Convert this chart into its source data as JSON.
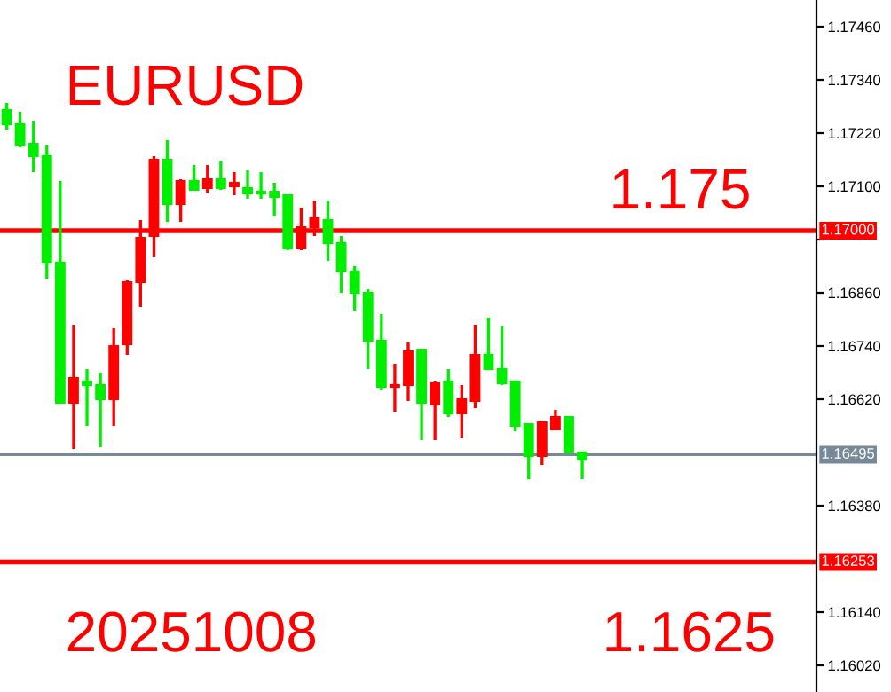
{
  "chart_data": {
    "type": "candlestick",
    "categories": [
      null,
      null,
      null,
      null,
      null,
      null,
      null,
      null,
      null,
      null,
      null,
      null,
      null,
      null,
      null,
      null,
      null,
      null,
      null,
      null,
      null,
      null,
      null,
      null,
      null,
      null,
      null,
      null,
      null,
      null,
      null,
      null,
      null,
      null,
      null,
      null,
      null,
      null,
      null,
      null,
      null,
      null,
      null,
      null,
      null,
      null,
      null,
      null,
      null,
      null,
      null,
      null,
      null,
      null,
      null,
      null,
      null,
      null,
      null,
      null,
      null
    ],
    "ohlc": [
      [
        1.17272,
        1.17288,
        1.17228,
        1.1724
      ],
      [
        1.1724,
        1.17268,
        1.17188,
        1.17192
      ],
      [
        1.17196,
        1.17248,
        1.17132,
        1.17168
      ],
      [
        1.17168,
        1.17192,
        1.16892,
        1.16928
      ],
      [
        1.16928,
        1.17112,
        1.16612,
        1.16612
      ],
      [
        1.16612,
        1.16788,
        1.16508,
        1.16668
      ],
      [
        1.1666,
        1.16688,
        1.1656,
        1.16652
      ],
      [
        1.16652,
        1.1668,
        1.16512,
        1.1662
      ],
      [
        1.1662,
        1.1678,
        1.1656,
        1.1674
      ],
      [
        1.16744,
        1.16888,
        1.1672,
        1.16884
      ],
      [
        1.16884,
        1.17024,
        1.16828,
        1.16984
      ],
      [
        1.16988,
        1.17168,
        1.1694,
        1.1716
      ],
      [
        1.1716,
        1.17204,
        1.1702,
        1.1706
      ],
      [
        1.1706,
        1.17116,
        1.1702,
        1.17112
      ],
      [
        1.17112,
        1.17148,
        1.17092,
        1.17092
      ],
      [
        1.17096,
        1.17148,
        1.17084,
        1.17116
      ],
      [
        1.17116,
        1.17156,
        1.17092,
        1.17096
      ],
      [
        1.171,
        1.17132,
        1.1708,
        1.17108
      ],
      [
        1.17096,
        1.17136,
        1.17072,
        1.17084
      ],
      [
        1.17088,
        1.17132,
        1.17072,
        1.17084
      ],
      [
        1.17088,
        1.17108,
        1.17032,
        1.17076
      ],
      [
        1.1708,
        1.1708,
        1.16956,
        1.1696
      ],
      [
        1.1696,
        1.17052,
        1.16956,
        1.17008
      ],
      [
        1.17008,
        1.17068,
        1.16988,
        1.17028
      ],
      [
        1.17024,
        1.17068,
        1.16932,
        1.16972
      ],
      [
        1.16972,
        1.16988,
        1.1686,
        1.16908
      ],
      [
        1.16908,
        1.1692,
        1.1682,
        1.1686
      ],
      [
        1.1686,
        1.16868,
        1.16688,
        1.16752
      ],
      [
        1.16752,
        1.16812,
        1.1664,
        1.16648
      ],
      [
        1.16648,
        1.167,
        1.16592,
        1.16652
      ],
      [
        1.16652,
        1.16748,
        1.16616,
        1.16728
      ],
      [
        1.16732,
        1.16732,
        1.16528,
        1.16612
      ],
      [
        1.16608,
        1.1666,
        1.16528,
        1.16656
      ],
      [
        1.1666,
        1.16688,
        1.1658,
        1.16588
      ],
      [
        1.16588,
        1.16652,
        1.16532,
        1.1662
      ],
      [
        1.16616,
        1.16788,
        1.166,
        1.1672
      ],
      [
        1.1672,
        1.16804,
        1.16688,
        1.16688
      ],
      [
        1.16688,
        1.16784,
        1.16652,
        1.16656
      ],
      [
        1.1666,
        1.1666,
        1.16548,
        1.1656
      ],
      [
        1.16564,
        1.16564,
        1.1644,
        1.16492
      ],
      [
        1.16492,
        1.16572,
        1.16472,
        1.16568
      ],
      [
        1.16552,
        1.16596,
        1.16552,
        1.1658
      ],
      [
        1.1658,
        1.1658,
        1.165,
        1.165
      ],
      [
        1.165,
        1.165,
        1.1644,
        1.16484
      ],
      null,
      null,
      null,
      null,
      null,
      null,
      null,
      null,
      null,
      null,
      null,
      null,
      null,
      null,
      null,
      null,
      null
    ],
    "colors": [
      "#00ee00",
      "#00ee00",
      "#00ee00",
      "#00ee00",
      "#00ee00",
      "#ff0000",
      "#00ee00",
      "#00ee00",
      "#ff0000",
      "#ff0000",
      "#ff0000",
      "#ff0000",
      "#00ee00",
      "#ff0000",
      "#00ee00",
      "#ff0000",
      "#00ee00",
      "#ff0000",
      "#00ee00",
      "#00ee00",
      "#00ee00",
      "#00ee00",
      "#ff0000",
      "#ff0000",
      "#00ee00",
      "#00ee00",
      "#00ee00",
      "#00ee00",
      "#00ee00",
      "#ff0000",
      "#ff0000",
      "#00ee00",
      "#ff0000",
      "#00ee00",
      "#ff0000",
      "#ff0000",
      "#00ee00",
      "#00ee00",
      "#00ee00",
      "#00ee00",
      "#ff0000",
      "#ff0000",
      "#00ee00",
      "#00ee00",
      null,
      null,
      null,
      null,
      null,
      null,
      null,
      null,
      null,
      null,
      null,
      null,
      null,
      null,
      null,
      null,
      null
    ],
    "ylim": [
      1.1596,
      1.1752
    ],
    "yticks": [
      {
        "value": 1.1746,
        "label": "1.17460"
      },
      {
        "value": 1.1734,
        "label": "1.17340"
      },
      {
        "value": 1.1722,
        "label": "1.17220"
      },
      {
        "value": 1.171,
        "label": "1.17100"
      },
      {
        "value": 1.1698,
        "label": null
      },
      {
        "value": 1.1686,
        "label": "1.16860"
      },
      {
        "value": 1.1674,
        "label": "1.16740"
      },
      {
        "value": 1.1662,
        "label": "1.16620"
      },
      {
        "value": 1.1638,
        "label": "1.16380"
      },
      {
        "value": 1.1614,
        "label": "1.16140"
      },
      {
        "value": 1.1602,
        "label": "1.16020"
      }
    ],
    "ref_lines": [
      {
        "axis": "y",
        "value": 1.17,
        "label": "1.17000",
        "color": "#ff0000"
      },
      {
        "axis": "y",
        "value": 1.16495,
        "label": "1.16495",
        "color": "#778899"
      },
      {
        "axis": "y",
        "value": 1.16253,
        "label": "1.16253",
        "color": "#ff0000"
      }
    ],
    "annotations": [
      "EURUSD",
      "1.175",
      "20251008",
      "1.1625"
    ],
    "tick_labels": "y",
    "grid": false,
    "legend": false
  }
}
